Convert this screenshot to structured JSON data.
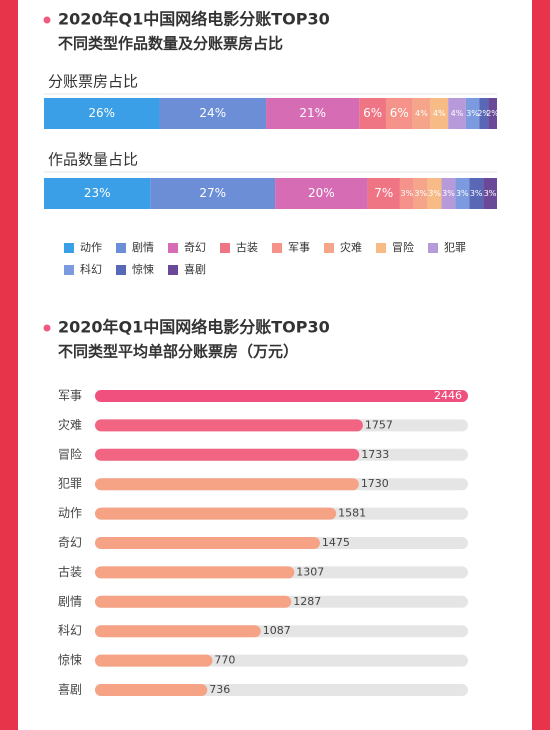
{
  "chart_data": [
    {
      "type": "stacked_bar_100",
      "title": "2020年Q1中国网络电影分账TOP30",
      "subtitle": "不同类型作品数量及分账票房占比",
      "categories": [
        "分账票房占比",
        "作品数量占比"
      ],
      "series": [
        {
          "name": "动作",
          "color": "#3a9fe6",
          "values": [
            26,
            23
          ],
          "value_labels": [
            "26%",
            "23%"
          ]
        },
        {
          "name": "剧情",
          "color": "#6c8ed6",
          "values": [
            24,
            27
          ],
          "value_labels": [
            "24%",
            "27%"
          ]
        },
        {
          "name": "奇幻",
          "color": "#d66cb4",
          "values": [
            21,
            20
          ],
          "value_labels": [
            "21%",
            "20%"
          ]
        },
        {
          "name": "古装",
          "color": "#ef7585",
          "values": [
            6,
            7
          ],
          "value_labels": [
            "6%",
            "7%"
          ]
        },
        {
          "name": "军事",
          "color": "#f59289",
          "values": [
            6,
            3
          ],
          "value_labels": [
            "6%",
            "3%"
          ]
        },
        {
          "name": "灾难",
          "color": "#f5a68a",
          "values": [
            4,
            3
          ],
          "value_labels": [
            "4%",
            "3%"
          ]
        },
        {
          "name": "冒险",
          "color": "#f7bb86",
          "values": [
            4,
            3
          ],
          "value_labels": [
            "4%",
            "3%"
          ]
        },
        {
          "name": "犯罪",
          "color": "#b79ad9",
          "values": [
            4,
            3
          ],
          "value_labels": [
            "4%",
            "3%"
          ]
        },
        {
          "name": "科幻",
          "color": "#7b9ae0",
          "values": [
            3,
            3
          ],
          "value_labels": [
            "3%",
            "3%"
          ]
        },
        {
          "name": "惊悚",
          "color": "#5968b6",
          "values": [
            2,
            3
          ],
          "value_labels": [
            "2%",
            "3%"
          ]
        },
        {
          "name": "喜剧",
          "color": "#6a4a98",
          "values": [
            2,
            3
          ],
          "value_labels": [
            "2%",
            "3%"
          ]
        }
      ]
    },
    {
      "type": "hbar",
      "title": "2020年Q1中国网络电影分账TOP30",
      "subtitle": "不同类型平均单部分账票房（万元）",
      "categories": [
        "军事",
        "灾难",
        "冒险",
        "犯罪",
        "动作",
        "奇幻",
        "古装",
        "剧情",
        "科幻",
        "惊悚",
        "喜剧"
      ],
      "values": [
        2446,
        1757,
        1733,
        1730,
        1581,
        1475,
        1307,
        1287,
        1087,
        770,
        736
      ],
      "colors": [
        "#f0507e",
        "#f26582",
        "#f26582",
        "#f5a285",
        "#f5a285",
        "#f5a285",
        "#f5a285",
        "#f5a285",
        "#f5a285",
        "#f5a285",
        "#f5a285"
      ]
    }
  ]
}
